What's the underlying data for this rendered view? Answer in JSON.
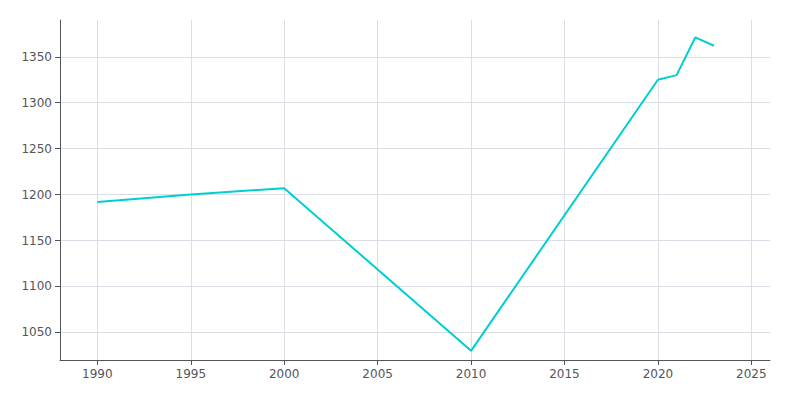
{
  "chart_data": {
    "type": "line",
    "x": [
      1990,
      1995,
      2000,
      2010,
      2020,
      2021,
      2022,
      2023
    ],
    "values": [
      1192,
      1200,
      1207,
      1030,
      1325,
      1330,
      1371,
      1362
    ],
    "color": "#00CED1",
    "xlim": [
      1988,
      2026
    ],
    "xticks": [
      1990,
      1995,
      2000,
      2005,
      2010,
      2015,
      2020,
      2025
    ],
    "ylim": [
      1020,
      1390
    ],
    "yticks": [
      1050,
      1100,
      1150,
      1200,
      1250,
      1300,
      1350
    ],
    "grid": true
  }
}
